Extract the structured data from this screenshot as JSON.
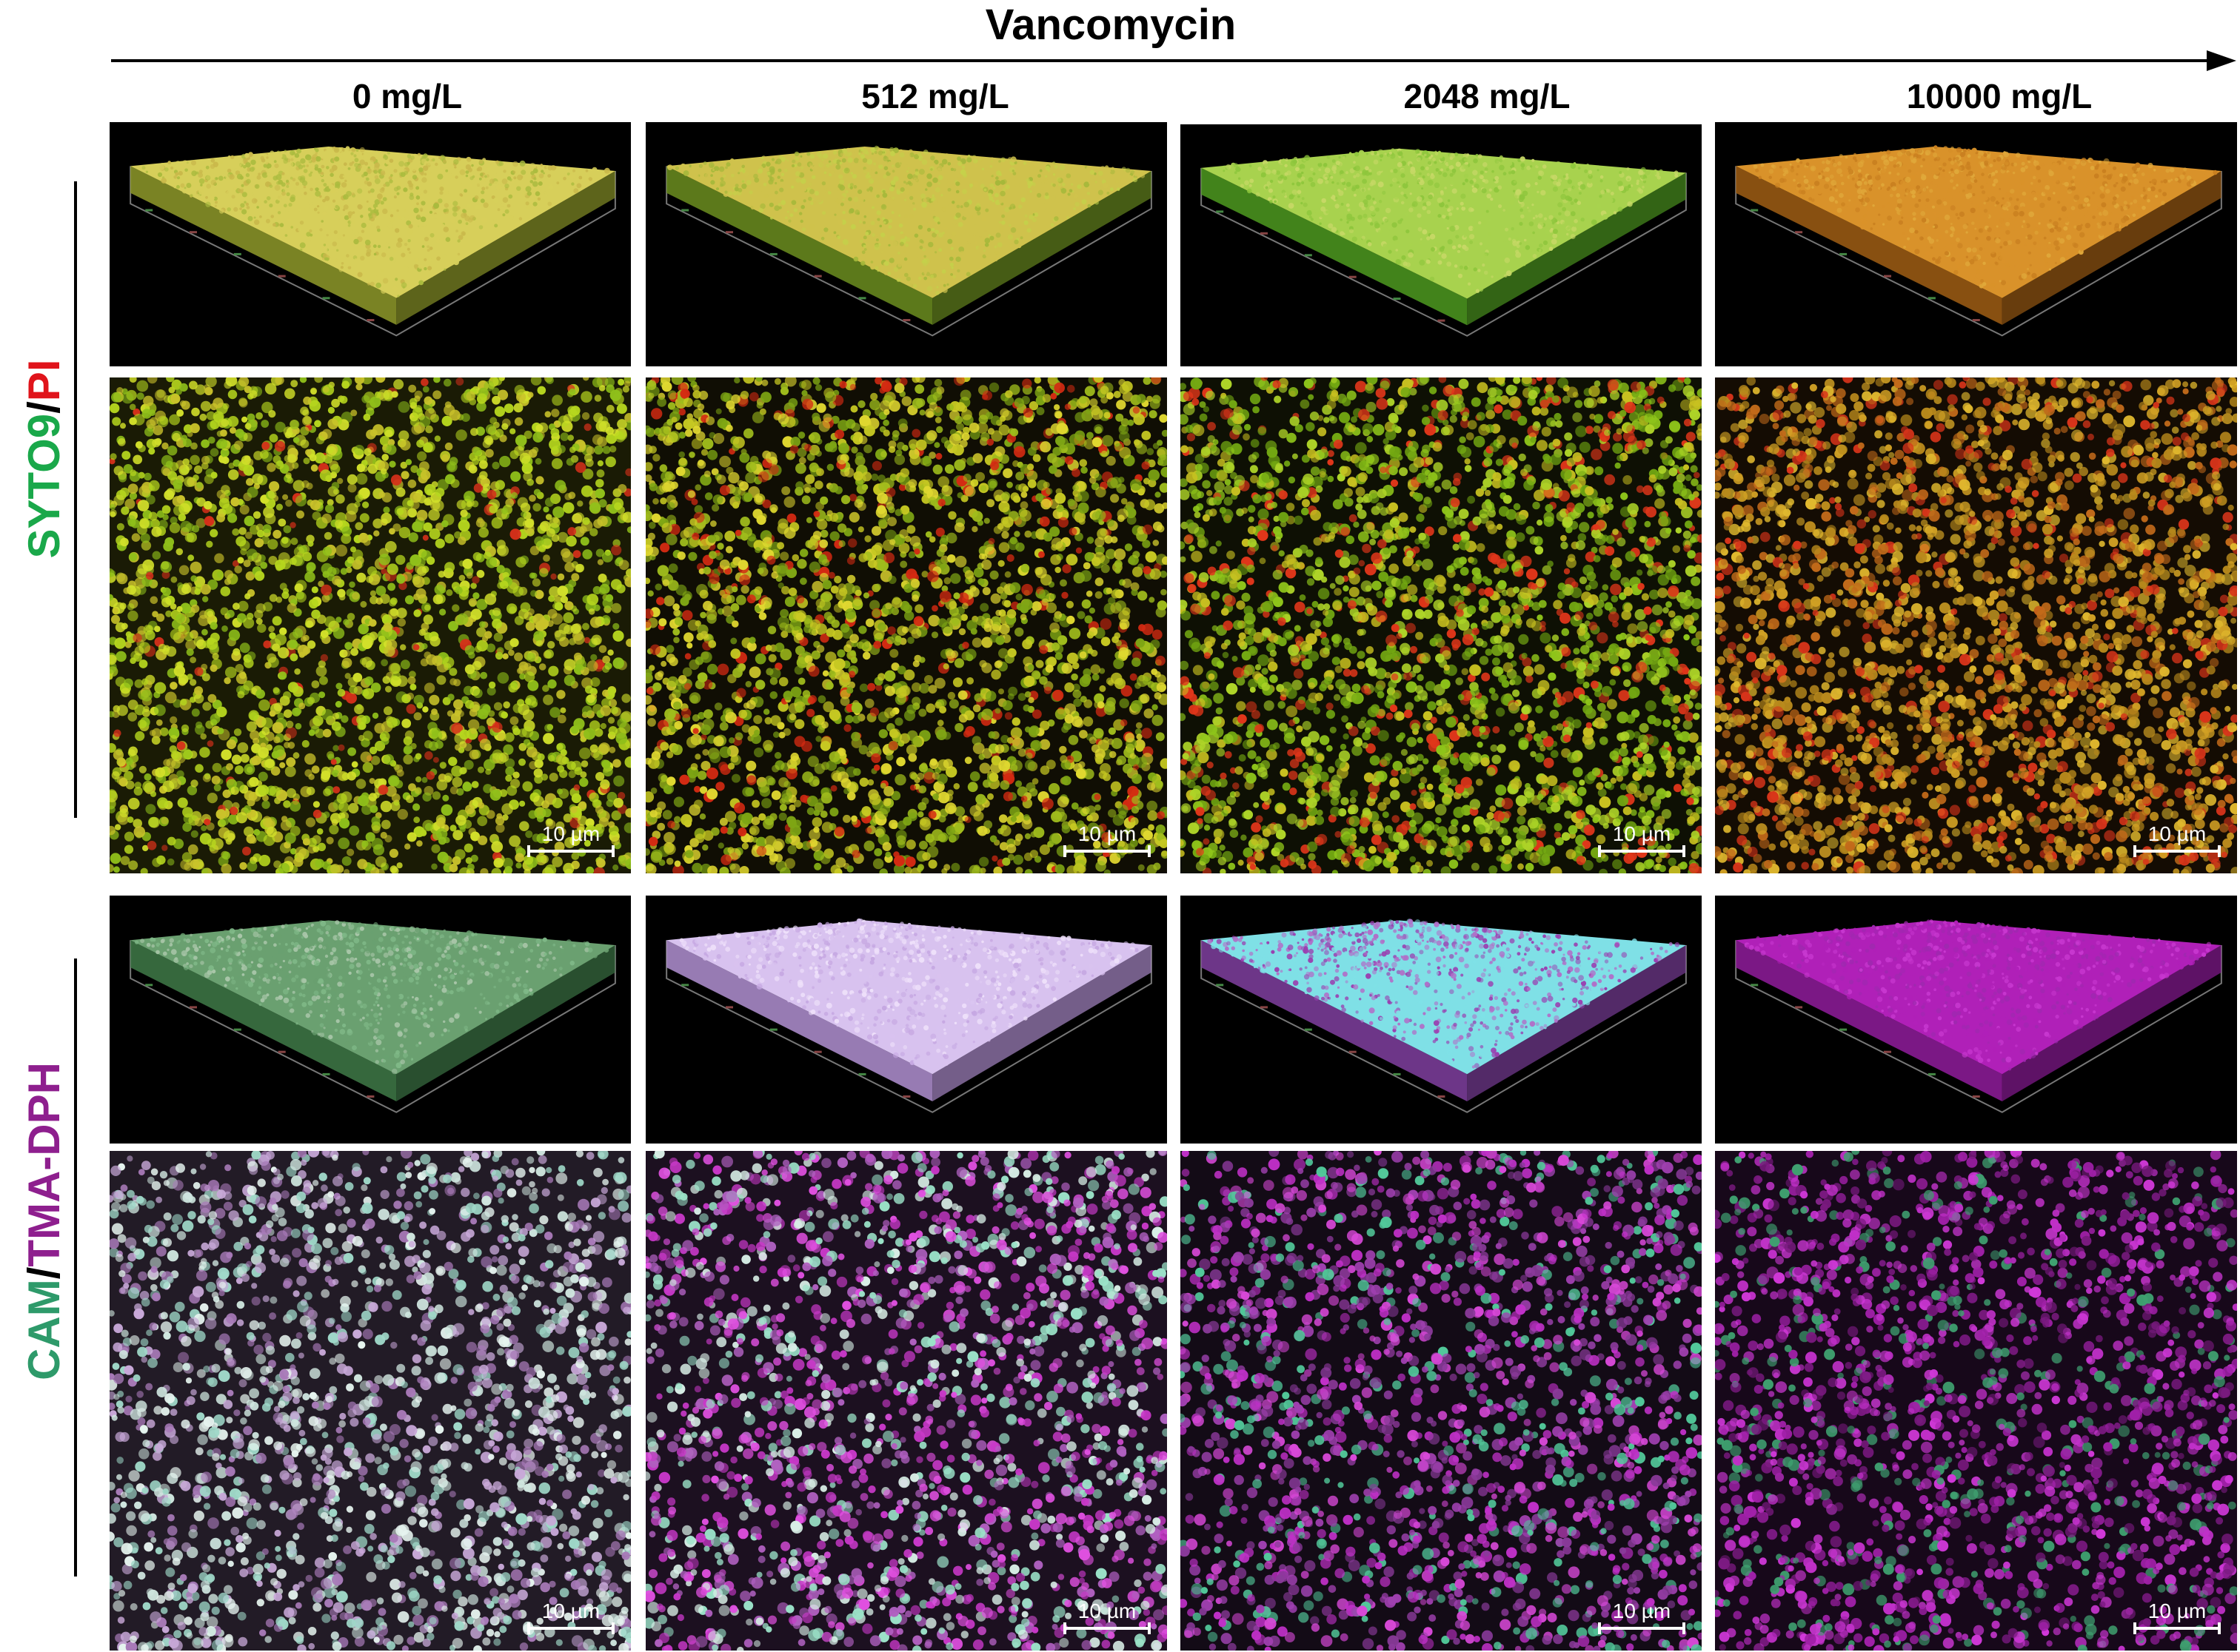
{
  "title": "Vancomycin",
  "columns": [
    {
      "label": "0 mg/L"
    },
    {
      "label": "512 mg/L"
    },
    {
      "label": "2048 mg/L"
    },
    {
      "label": "10000 mg/L"
    }
  ],
  "row_groups": [
    {
      "stain_a": "SYTO9",
      "separator": "/",
      "stain_b": "PI",
      "colors": {
        "stain_a": "#1aa84a",
        "separator": "#000000",
        "stain_b": "#e0141b"
      }
    },
    {
      "stain_a": "CAM",
      "separator": "/",
      "stain_b": "TMA-DPH",
      "colors": {
        "stain_a": "#2e9a6a",
        "separator": "#000000",
        "stain_b": "#8e1f8e"
      }
    }
  ],
  "scale_bar_label": "10 µm",
  "panel_colors": {
    "live_dead": [
      {
        "bg": "#1a1b05",
        "dots": [
          "#b6d61e",
          "#d2e02a",
          "#8fbf1a",
          "#c9c22a",
          "#d6301a"
        ],
        "red_fraction": 0.04
      },
      {
        "bg": "#100e04",
        "dots": [
          "#9fbc1c",
          "#c6c822",
          "#7ea514",
          "#e0d830",
          "#d42a12"
        ],
        "red_fraction": 0.12
      },
      {
        "bg": "#0e1004",
        "dots": [
          "#8ec41a",
          "#aed428",
          "#73a812",
          "#c8c020",
          "#e0361a"
        ],
        "red_fraction": 0.18
      },
      {
        "bg": "#140c03",
        "dots": [
          "#d0a024",
          "#e0b82e",
          "#b98a1c",
          "#c26a1a",
          "#d8341a"
        ],
        "red_fraction": 0.16
      }
    ],
    "membrane": [
      {
        "bg": "#221b26",
        "dots": [
          "#cfe6df",
          "#9fd8c8",
          "#c8a8d8",
          "#a87ab8",
          "#e6f4ef"
        ],
        "magenta_fraction": 0.2
      },
      {
        "bg": "#1c1020",
        "dots": [
          "#c838c8",
          "#9be2c8",
          "#b060c0",
          "#e050e0",
          "#d8eee6"
        ],
        "magenta_fraction": 0.55
      },
      {
        "bg": "#130b16",
        "dots": [
          "#c030c8",
          "#a040b0",
          "#52c89a",
          "#d848d8",
          "#8a3a9a"
        ],
        "magenta_fraction": 0.75
      },
      {
        "bg": "#17081a",
        "dots": [
          "#a020a8",
          "#c030c8",
          "#7a1a80",
          "#d038d8",
          "#3fa070"
        ],
        "magenta_fraction": 0.92
      }
    ],
    "biofilm_3d": [
      {
        "surface": [
          "#d7cf5a",
          "#c9b84a",
          "#aabb3e"
        ],
        "side": "#8f9a2a"
      },
      {
        "surface": [
          "#cfc24c",
          "#c5d04a",
          "#a5b83a"
        ],
        "side": "#6c8e20"
      },
      {
        "surface": [
          "#a8d24e",
          "#8ec63c",
          "#c7d866"
        ],
        "side": "#4e9a20"
      },
      {
        "surface": [
          "#d9922a",
          "#c98020",
          "#e0a83a"
        ],
        "side": "#a05e14"
      },
      {
        "surface": [
          "#6aa070",
          "#7fb887",
          "#a9c6a9"
        ],
        "side": "#3f7a48"
      },
      {
        "surface": [
          "#d8c2ef",
          "#c6a8e2",
          "#eee0fa"
        ],
        "side": "#b290d2"
      },
      {
        "surface": [
          "#7fe0e6",
          "#b070c8",
          "#9a40b0"
        ],
        "side": "#8040a0"
      },
      {
        "surface": [
          "#b020b8",
          "#c838d0",
          "#a028b0"
        ],
        "side": "#901c9c"
      }
    ]
  }
}
